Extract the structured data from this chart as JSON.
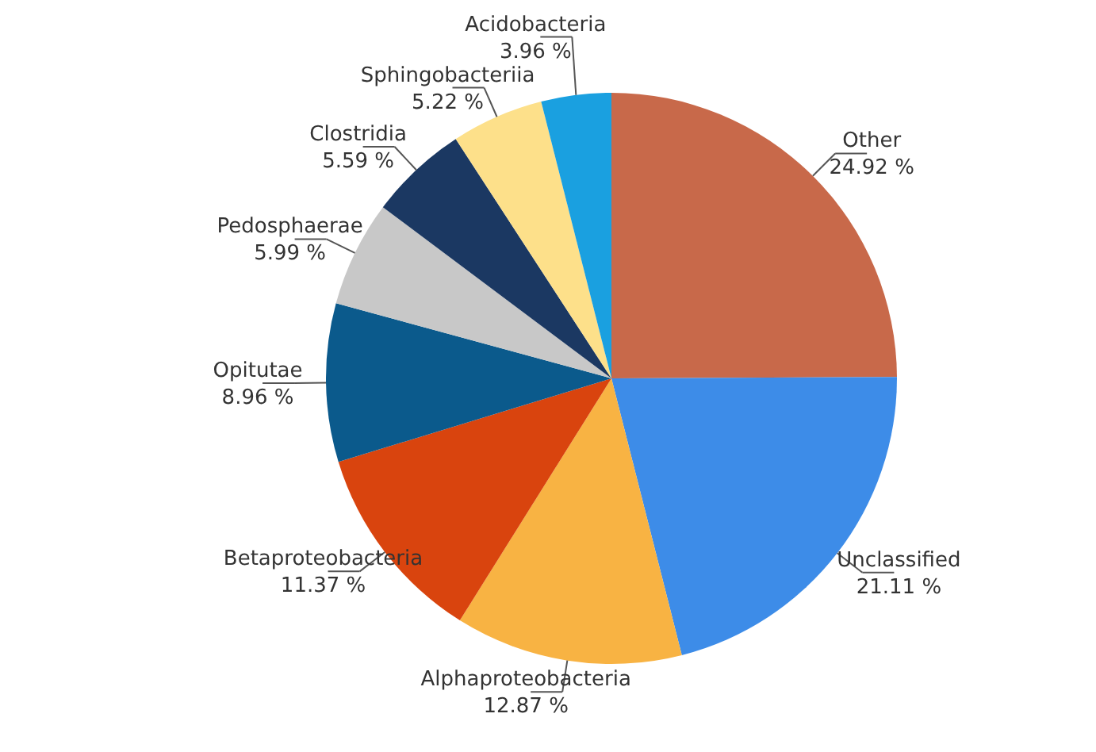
{
  "chart_data": {
    "type": "pie",
    "categories": [
      "Other",
      "Unclassified",
      "Alphaproteobacteria",
      "Betaproteobacteria",
      "Opitutae",
      "Pedosphaerae",
      "Clostridia",
      "Sphingobacteriia",
      "Acidobacteria"
    ],
    "values": [
      24.92,
      21.11,
      12.87,
      11.37,
      8.96,
      5.99,
      5.59,
      5.22,
      3.96
    ],
    "value_labels": [
      "24.92 %",
      "21.11 %",
      "12.87 %",
      "11.37 %",
      "8.96 %",
      "5.99 %",
      "5.59 %",
      "5.22 %",
      "3.96 %"
    ],
    "colors": [
      "#c8694a",
      "#3d8ce8",
      "#f8b343",
      "#d9440e",
      "#0b5a8c",
      "#c8c8c8",
      "#1b3862",
      "#fde08a",
      "#1aa0e0"
    ]
  }
}
